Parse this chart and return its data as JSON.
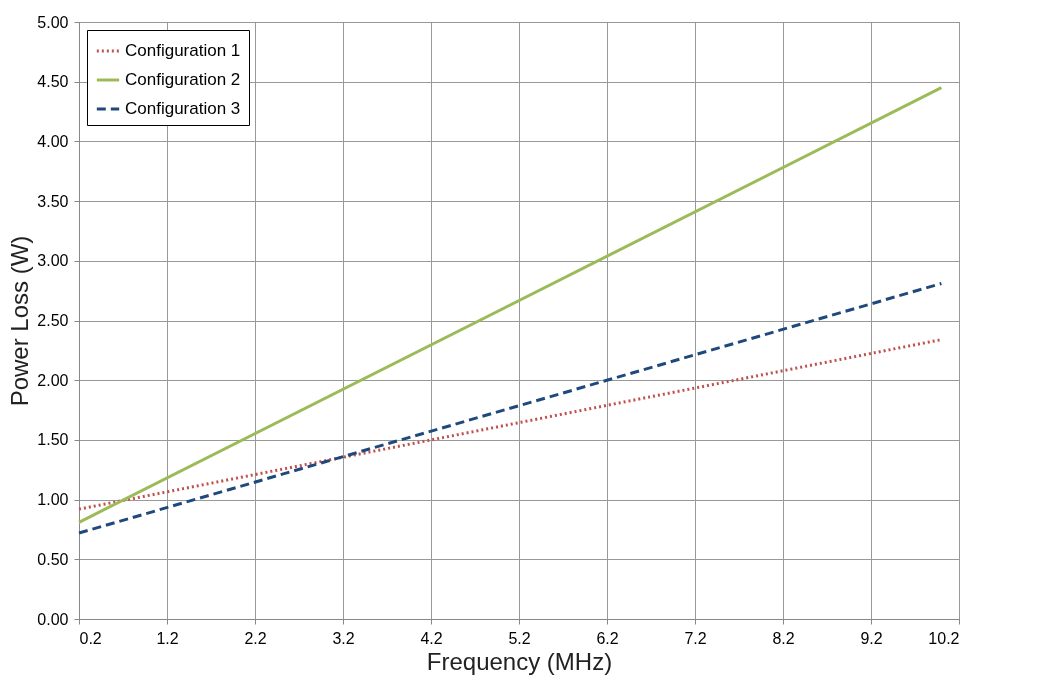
{
  "chart_data": {
    "type": "line",
    "xlabel": "Frequency (MHz)",
    "ylabel": "Power Loss (W)",
    "xlim": [
      0.2,
      10.2
    ],
    "xticks": [
      0.2,
      1.2,
      2.2,
      3.2,
      4.2,
      5.2,
      6.2,
      7.2,
      8.2,
      9.2,
      10.2
    ],
    "ylim": [
      0,
      5
    ],
    "yticks": [
      {
        "value": 0,
        "label": "0.00"
      },
      {
        "value": 0.5,
        "label": "0.50"
      },
      {
        "value": 1,
        "label": "1.00"
      },
      {
        "value": 1.5,
        "label": "1.50"
      },
      {
        "value": 2,
        "label": "2.00"
      },
      {
        "value": 2.5,
        "label": "2.50"
      },
      {
        "value": 3,
        "label": "3.00"
      },
      {
        "value": 3.5,
        "label": "3.50"
      },
      {
        "value": 4,
        "label": "4.00"
      },
      {
        "value": 4.5,
        "label": "4.50"
      },
      {
        "value": 5,
        "label": "5.00"
      }
    ],
    "grid": true,
    "legend": "top left",
    "marker": "none",
    "x": [
      0.2,
      10.0
    ],
    "series": [
      {
        "name": "Configuration 1",
        "color": "#c0504d",
        "line_style": "dotted",
        "values": [
          0.92,
          2.34
        ]
      },
      {
        "name": "Configuration 2",
        "color": "#9bbb59",
        "line_style": "solid",
        "values": [
          0.81,
          4.45
        ]
      },
      {
        "name": "Configuration 3",
        "color": "#1f497d",
        "line_style": "dashed",
        "values": [
          0.72,
          2.81
        ]
      }
    ]
  }
}
